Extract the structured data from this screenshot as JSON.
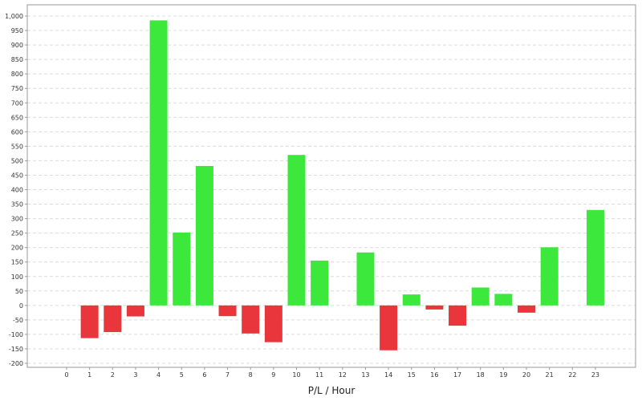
{
  "chart_data": {
    "type": "bar",
    "title": "",
    "xlabel": "P/L / Hour",
    "ylabel": "",
    "categories": [
      "0",
      "1",
      "2",
      "3",
      "4",
      "5",
      "6",
      "7",
      "8",
      "9",
      "10",
      "11",
      "12",
      "13",
      "14",
      "15",
      "16",
      "17",
      "18",
      "19",
      "20",
      "21",
      "22",
      "23"
    ],
    "values": [
      0,
      -113,
      -92,
      -38,
      985,
      252,
      482,
      -37,
      -97,
      -127,
      520,
      155,
      0,
      183,
      -155,
      38,
      -14,
      -70,
      62,
      40,
      -25,
      201,
      0,
      330
    ],
    "ylim": [
      -200,
      1000
    ],
    "yticks": [
      -200,
      -150,
      -100,
      -50,
      0,
      50,
      100,
      150,
      200,
      250,
      300,
      350,
      400,
      450,
      500,
      550,
      600,
      650,
      700,
      750,
      800,
      850,
      900,
      950,
      1000
    ],
    "ytick_labels": [
      "-200",
      "-150",
      "-100",
      "-50",
      "0",
      "50",
      "100",
      "150",
      "200",
      "250",
      "300",
      "350",
      "400",
      "450",
      "500",
      "550",
      "600",
      "650",
      "700",
      "750",
      "800",
      "850",
      "900",
      "950",
      "1,000"
    ],
    "grid": true,
    "colors": {
      "positive": "#3de83d",
      "negative": "#e8363c",
      "grid": "#dcdcdc",
      "frame": "#999999"
    }
  }
}
